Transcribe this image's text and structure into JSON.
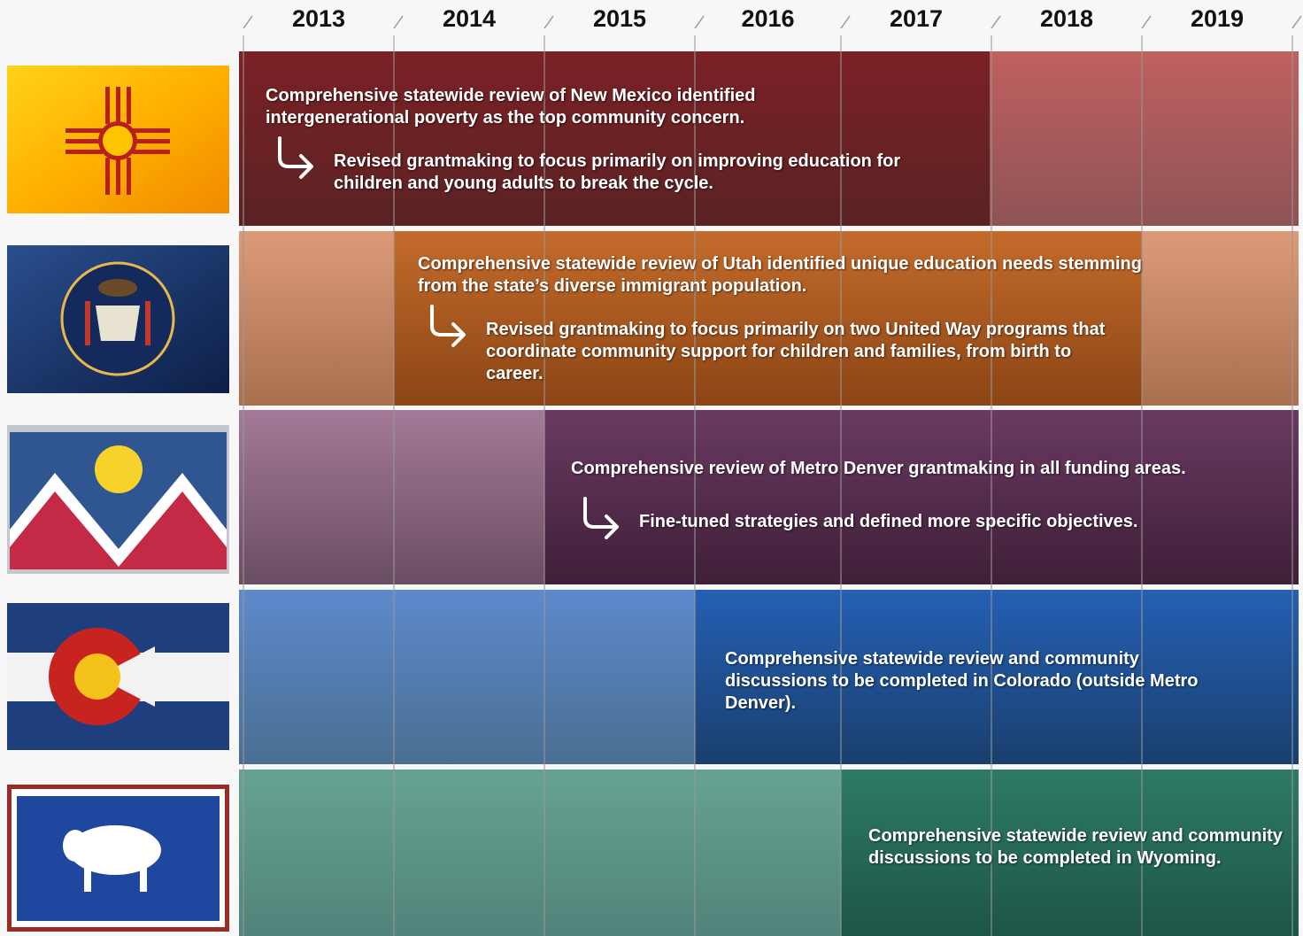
{
  "header": {
    "years": [
      "2013",
      "2014",
      "2015",
      "2016",
      "2017",
      "2018",
      "2019"
    ]
  },
  "rows": [
    {
      "review": "Comprehensive statewide review of New Mexico identified intergenerational poverty as the top community concern.",
      "followup": "Revised grantmaking to focus primarily on improving education for children and young adults to break the cycle."
    },
    {
      "review": "Comprehensive statewide review of Utah identified unique education needs stemming from the state’s diverse immigrant population.",
      "followup": "Revised grantmaking to focus primarily on two United Way programs that coordinate community support for children and families, from birth to career."
    },
    {
      "review": "Comprehensive review of Metro Denver grantmaking in all funding areas.",
      "followup": "Fine-tuned strategies and defined more specific objectives."
    },
    {
      "review": "Comprehensive statewide review and community discussions to be completed in Colorado (outside Metro Denver)."
    },
    {
      "review": "Comprehensive statewide review and community discussions to be completed in Wyoming."
    }
  ]
}
